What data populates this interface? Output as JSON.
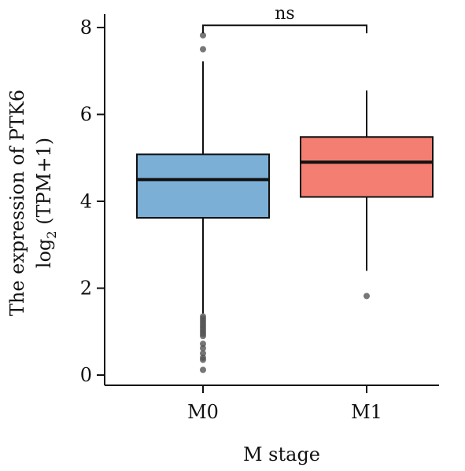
{
  "chart_data": {
    "type": "box",
    "xlabel": "M stage",
    "ylabel_line1": "The expression of PTK6",
    "ylabel_line2_prefix": "log",
    "ylabel_line2_sub": "2",
    "ylabel_line2_suffix": " (TPM+1)",
    "ylim": [
      0,
      8.5
    ],
    "yticks": [
      0,
      2,
      4,
      6,
      8
    ],
    "grid": false,
    "legend": "none",
    "categories": [
      "M0",
      "M1"
    ],
    "boxes": [
      {
        "category": "M0",
        "color": "#7bafd6",
        "q1": 3.62,
        "median": 4.5,
        "q3": 5.08,
        "whisker_low": 1.42,
        "whisker_high": 7.22,
        "outliers": [
          7.82,
          7.5,
          1.35,
          1.3,
          1.25,
          1.2,
          1.15,
          1.1,
          1.05,
          1.0,
          0.95,
          0.9,
          0.72,
          0.62,
          0.5,
          0.4,
          0.35,
          0.12
        ]
      },
      {
        "category": "M1",
        "color": "#f47e72",
        "q1": 4.1,
        "median": 4.9,
        "q3": 5.48,
        "whisker_low": 2.4,
        "whisker_high": 6.55,
        "outliers": [
          1.82
        ]
      }
    ],
    "significance": {
      "groups": [
        "M0",
        "M1"
      ],
      "label": "ns",
      "y": 8.05
    }
  }
}
